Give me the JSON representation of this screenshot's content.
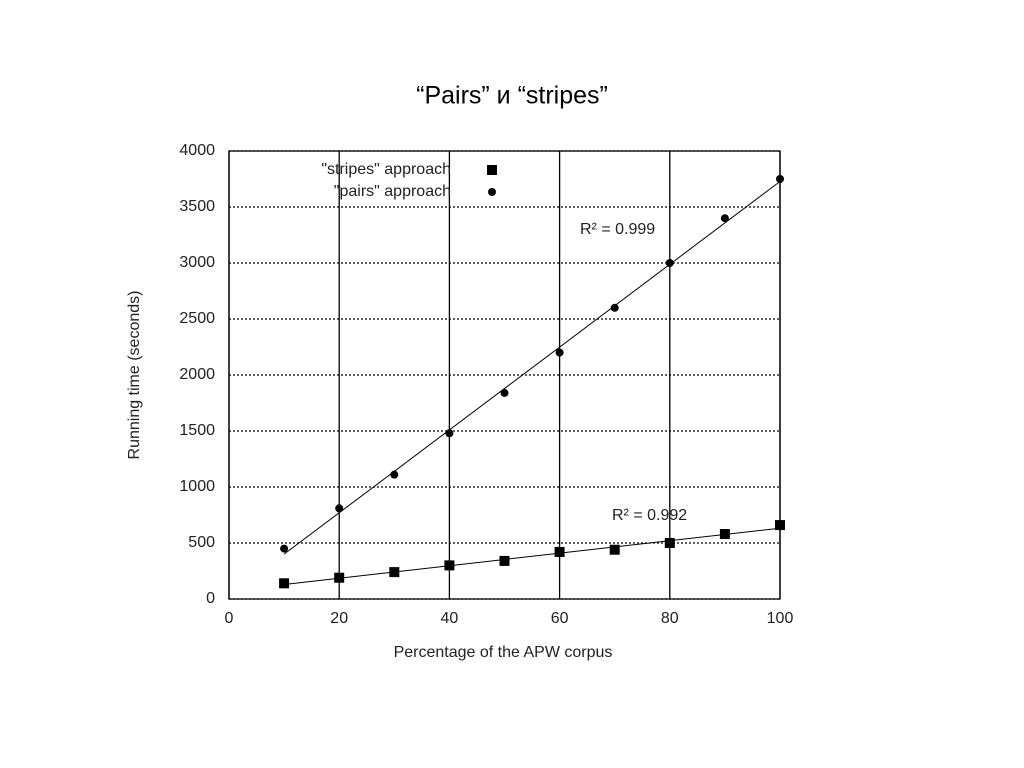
{
  "chart_data": {
    "type": "scatter",
    "title": "“Pairs” и “stripes”",
    "x_label": "Percentage of the APW corpus",
    "y_label": "Running time (seconds)",
    "x": [
      10,
      20,
      30,
      40,
      50,
      60,
      70,
      80,
      90,
      100
    ],
    "series": [
      {
        "name": "\"stripes\" approach",
        "color": "#000000",
        "marker": "square",
        "values": [
          140,
          190,
          240,
          300,
          340,
          420,
          440,
          500,
          580,
          660
        ]
      },
      {
        "name": "\"pairs\" approach",
        "color": "#000000",
        "marker": "circle",
        "values": [
          450,
          810,
          1110,
          1480,
          1840,
          2200,
          2600,
          3000,
          3400,
          3750
        ]
      }
    ],
    "annotations": [
      "R² = 0.999",
      "R² = 0.992"
    ],
    "xlim": [
      0,
      100
    ],
    "xticks": [
      0,
      20,
      40,
      60,
      80,
      100
    ],
    "ylim": [
      0,
      4000
    ],
    "yticks": [
      0,
      500,
      1000,
      1500,
      2000,
      2500,
      3000,
      3500,
      4000
    ],
    "grid": true,
    "trend_lines": true,
    "legend": "upper left"
  }
}
